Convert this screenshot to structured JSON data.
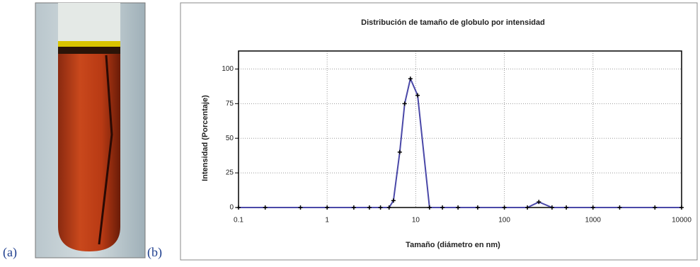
{
  "panel_labels": [
    "(a)",
    "(b)"
  ],
  "chart_data": {
    "type": "line",
    "title": "Distribución de tamaño de globulo por intensidad",
    "xlabel": "Tamaño (diámetro en nm)",
    "ylabel": "Intensidad (Porcentaje)",
    "x": [
      0.1,
      0.2,
      0.5,
      1,
      2,
      3,
      4,
      5,
      5.6,
      6.6,
      7.5,
      8.7,
      10.5,
      14.3,
      20,
      30,
      50,
      100,
      182,
      245,
      345,
      500,
      1000,
      2000,
      5000,
      10000
    ],
    "series": [
      {
        "name": "Intensidad",
        "color": "#4a48a8",
        "values": [
          0,
          0,
          0,
          0,
          0,
          0,
          0,
          0,
          5,
          40,
          75,
          93,
          81,
          0,
          0,
          0,
          0,
          0,
          0,
          4,
          0,
          0,
          0,
          0,
          0,
          0
        ]
      }
    ],
    "xlim": [
      0.1,
      10000
    ],
    "xticks": [
      0.1,
      1,
      10,
      100,
      1000,
      10000
    ],
    "log_x": true,
    "ylim": [
      0,
      113
    ],
    "yticks": [
      0,
      25,
      50,
      75,
      100
    ],
    "grid": true
  }
}
